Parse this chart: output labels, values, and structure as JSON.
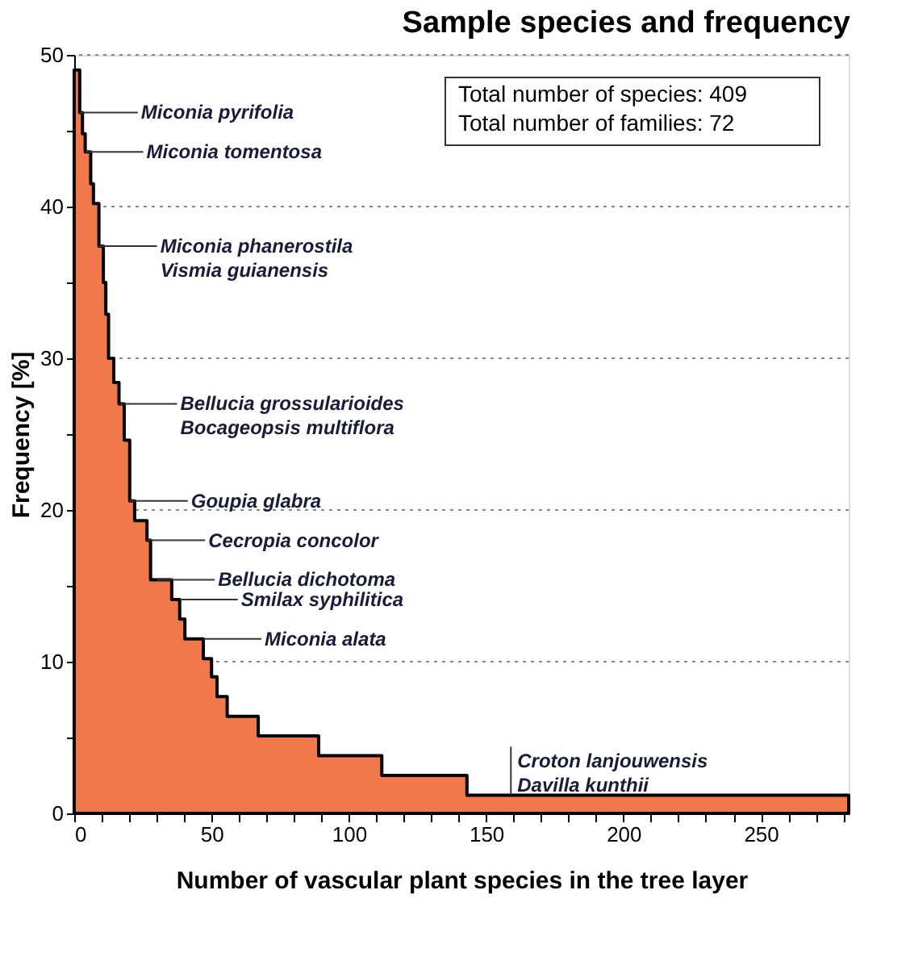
{
  "chart_data": {
    "type": "area",
    "title": "Sample species and frequency",
    "xlabel": "Number of vascular plant species in the tree layer",
    "ylabel": "Frequency [%]",
    "x": [
      0,
      2,
      3,
      4,
      6,
      7,
      9,
      10.6,
      11.5,
      12.5,
      14.4,
      16.3,
      18.2,
      20.2,
      22,
      26.5,
      27.8,
      35.5,
      38.4,
      40.3,
      47,
      50,
      52,
      55.7,
      67,
      89,
      112,
      143,
      282
    ],
    "series": [
      {
        "color": "#f0784a",
        "values": [
          49,
          46.2,
          44.8,
          43.6,
          41.5,
          40.2,
          37.4,
          35,
          32.9,
          30,
          28.4,
          27,
          24.6,
          20.6,
          19.3,
          18,
          15.4,
          14.1,
          12.8,
          11.5,
          10.2,
          9,
          7.7,
          6.4,
          5.1,
          3.8,
          2.5,
          1.2,
          1.2
        ]
      }
    ],
    "xlim": [
      0,
      282
    ],
    "xticks": [
      0,
      {
        "value": 10,
        "label": null
      },
      {
        "value": 20,
        "label": null
      },
      {
        "value": 30,
        "label": null
      },
      {
        "value": 40,
        "label": null
      },
      50,
      {
        "value": 60,
        "label": null
      },
      {
        "value": 70,
        "label": null
      },
      {
        "value": 80,
        "label": null
      },
      {
        "value": 90,
        "label": null
      },
      100,
      {
        "value": 110,
        "label": null
      },
      {
        "value": 120,
        "label": null
      },
      {
        "value": 130,
        "label": null
      },
      {
        "value": 140,
        "label": null
      },
      150,
      {
        "value": 160,
        "label": null
      },
      {
        "value": 170,
        "label": null
      },
      {
        "value": 180,
        "label": null
      },
      {
        "value": 190,
        "label": null
      },
      200,
      {
        "value": 210,
        "label": null
      },
      {
        "value": 220,
        "label": null
      },
      {
        "value": 230,
        "label": null
      },
      {
        "value": 240,
        "label": null
      },
      250,
      {
        "value": 260,
        "label": null
      },
      {
        "value": 270,
        "label": null
      },
      {
        "value": 280,
        "label": null
      }
    ],
    "ylim": [
      0,
      50
    ],
    "yticks": [
      0,
      {
        "value": 5,
        "label": null
      },
      10,
      {
        "value": 15,
        "label": null
      },
      20,
      {
        "value": 25,
        "label": null
      },
      30,
      {
        "value": 35,
        "label": null
      },
      40,
      {
        "value": 45,
        "label": null
      },
      50
    ],
    "grid": "y",
    "annotations": [
      {
        "text": "Miconia pyrifolia",
        "x": 2,
        "y": 46.2
      },
      {
        "text": "Miconia tomentosa",
        "x": 4,
        "y": 43.6
      },
      {
        "text": "Miconia phanerostila\nVismia guianensis",
        "x": 9,
        "y": 37.4
      },
      {
        "text": "Bellucia grossularioides\nBocageopsis multiflora",
        "x": 16.3,
        "y": 27
      },
      {
        "text": "Goupia glabra",
        "x": 20.2,
        "y": 20.6
      },
      {
        "text": "Cecropia concolor",
        "x": 26.5,
        "y": 18
      },
      {
        "text": "Bellucia dichotoma",
        "x": 30,
        "y": 15.4
      },
      {
        "text": "Smilax syphilitica",
        "x": 38.4,
        "y": 14.1
      },
      {
        "text": "Miconia alata",
        "x": 47,
        "y": 11.5
      },
      {
        "text": "Croton lanjouwensis\nDavilla kunthii",
        "x": 159,
        "y": 1.2
      },
      "Total number of species: 409",
      "Total number of families: 72"
    ]
  }
}
